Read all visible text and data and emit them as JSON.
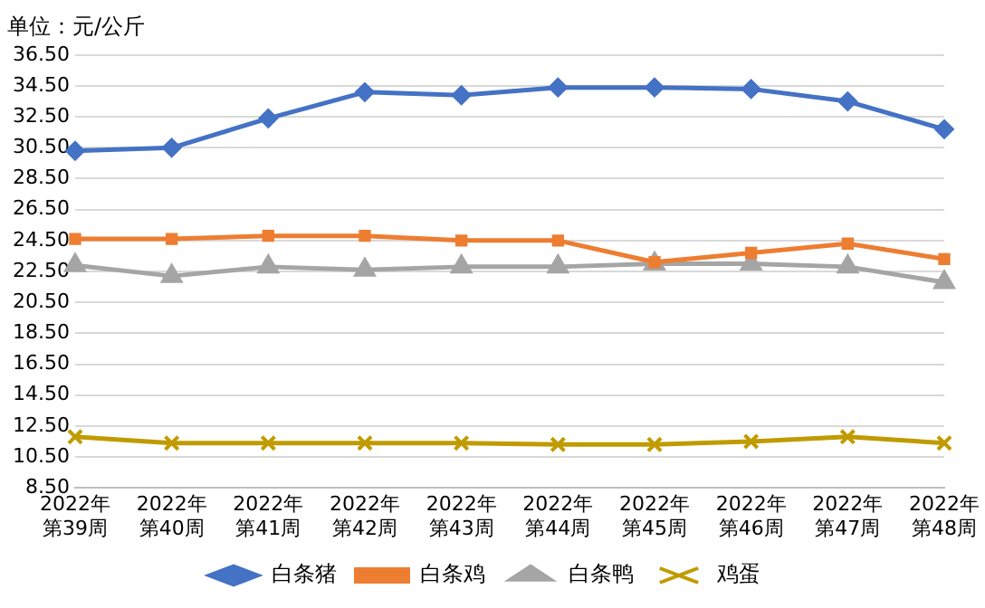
{
  "chart_data": {
    "type": "line",
    "title": "单位：元/公斤",
    "categories": [
      "2022年第39周",
      "2022年第40周",
      "2022年第41周",
      "2022年第42周",
      "2022年第43周",
      "2022年第44周",
      "2022年第45周",
      "2022年第46周",
      "2022年第47周",
      "2022年第48周"
    ],
    "series": [
      {
        "name": "白条猪",
        "color": "#4472c4",
        "marker": "diamond",
        "values": [
          30.3,
          30.5,
          32.4,
          34.1,
          33.9,
          34.4,
          34.4,
          34.3,
          33.5,
          31.7
        ]
      },
      {
        "name": "白条鸡",
        "color": "#ed7d31",
        "marker": "square",
        "values": [
          24.6,
          24.6,
          24.8,
          24.8,
          24.5,
          24.5,
          23.1,
          23.7,
          24.3,
          23.3
        ]
      },
      {
        "name": "白条鸭",
        "color": "#a5a5a5",
        "marker": "triangle",
        "values": [
          22.9,
          22.2,
          22.8,
          22.6,
          22.8,
          22.8,
          23.0,
          23.0,
          22.8,
          21.8
        ]
      },
      {
        "name": "鸡蛋",
        "color": "#c09b00",
        "marker": "cross",
        "values": [
          11.8,
          11.4,
          11.4,
          11.4,
          11.4,
          11.3,
          11.3,
          11.5,
          11.8,
          11.4
        ]
      }
    ],
    "ylim": [
      8.5,
      36.5
    ],
    "yticks": [
      {
        "value": 8.5,
        "label": "8.50"
      },
      {
        "value": 10.5,
        "label": "10.50"
      },
      {
        "value": 12.5,
        "label": "12.50"
      },
      {
        "value": 14.5,
        "label": "14.50"
      },
      {
        "value": 16.5,
        "label": "16.50"
      },
      {
        "value": 18.5,
        "label": "18.50"
      },
      {
        "value": 20.5,
        "label": "20.50"
      },
      {
        "value": 22.5,
        "label": "22.50"
      },
      {
        "value": 24.5,
        "label": "24.50"
      },
      {
        "value": 26.5,
        "label": "26.50"
      },
      {
        "value": 28.5,
        "label": "28.50"
      },
      {
        "value": 30.5,
        "label": "30.50"
      },
      {
        "value": 32.5,
        "label": "32.50"
      },
      {
        "value": 34.5,
        "label": "34.50"
      },
      {
        "value": 36.5,
        "label": "36.50"
      }
    ],
    "grid": "y",
    "legend": "bottom",
    "line_style": "solid"
  }
}
